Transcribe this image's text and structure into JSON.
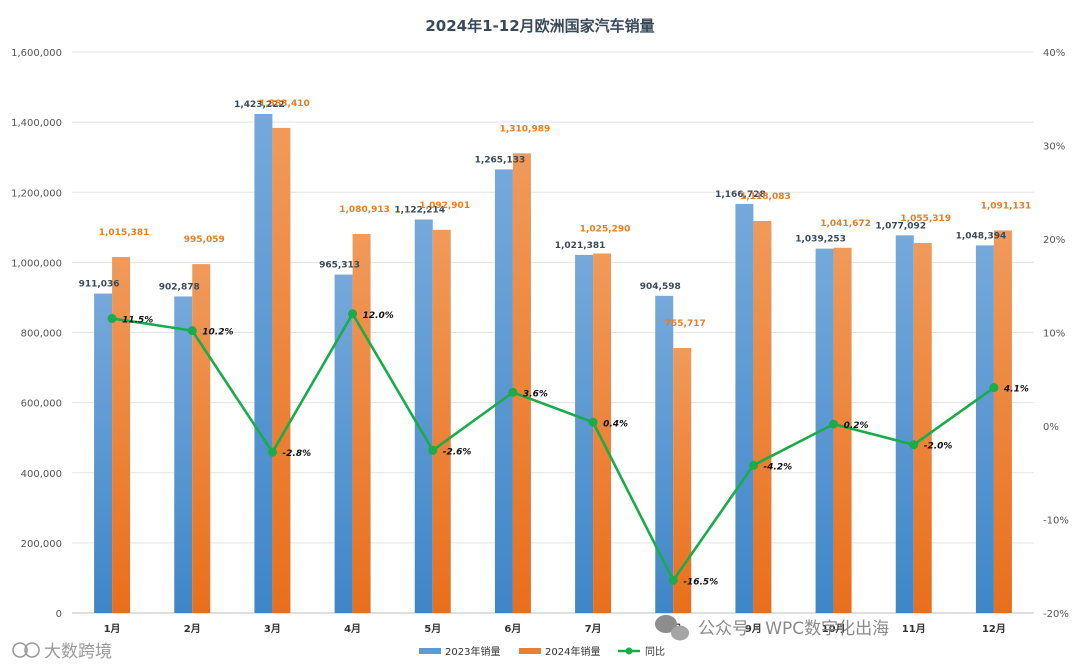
{
  "chart_data": {
    "type": "bar",
    "title": "2024年1-12月欧洲国家汽车销量",
    "categories": [
      "1月",
      "2月",
      "3月",
      "4月",
      "5月",
      "6月",
      "7月",
      "8月",
      "9月",
      "10月",
      "11月",
      "12月"
    ],
    "series": [
      {
        "name": "2023年销量",
        "type": "bar",
        "axis": "left",
        "color": "#5b9bd5",
        "values": [
          911036,
          902878,
          1423222,
          965313,
          1122214,
          1265133,
          1021381,
          904598,
          1166728,
          1039253,
          1077092,
          1048394
        ],
        "labels": [
          "911,036",
          "902,878",
          "1,423,222",
          "965,313",
          "1,122,214",
          "1,265,133",
          "1,021,381",
          "904,598",
          "1,166,728",
          "1,039,253",
          "1,077,092",
          "1,048,394"
        ]
      },
      {
        "name": "2024年销量",
        "type": "bar",
        "axis": "left",
        "color": "#ed7d31",
        "values": [
          1015381,
          995059,
          1383410,
          1080913,
          1092901,
          1310989,
          1025290,
          755717,
          1118083,
          1041672,
          1055319,
          1091131
        ],
        "labels": [
          "1,015,381",
          "995,059",
          "1,383,410",
          "1,080,913",
          "1,092,901",
          "1,310,989",
          "1,025,290",
          "755,717",
          "1,118,083",
          "1,041,672",
          "1,055,319",
          "1,091,131"
        ]
      },
      {
        "name": "同比",
        "type": "line",
        "axis": "right",
        "color": "#1aab4a",
        "values": [
          11.5,
          10.2,
          -2.8,
          12.0,
          -2.6,
          3.6,
          0.4,
          -16.5,
          -4.2,
          0.2,
          -2.0,
          4.1
        ],
        "labels": [
          "11.5%",
          "10.2%",
          "-2.8%",
          "12.0%",
          "-2.6%",
          "3.6%",
          "0.4%",
          "-16.5%",
          "-4.2%",
          "0.2%",
          "-2.0%",
          "4.1%"
        ]
      }
    ],
    "ylim": [
      0,
      1600000
    ],
    "yticks": [
      "0",
      "200,000",
      "400,000",
      "600,000",
      "800,000",
      "1,000,000",
      "1,200,000",
      "1,400,000",
      "1,600,000"
    ],
    "y2lim": [
      -20,
      40
    ],
    "y2ticks": [
      "-20%",
      "-10%",
      "0%",
      "10%",
      "20%",
      "30%",
      "40%"
    ],
    "grid": true,
    "legend_position": "bottom"
  },
  "watermarks": {
    "bottom_left": "大数跨境",
    "bottom_right": "公众号 · WPC数字化出海"
  }
}
